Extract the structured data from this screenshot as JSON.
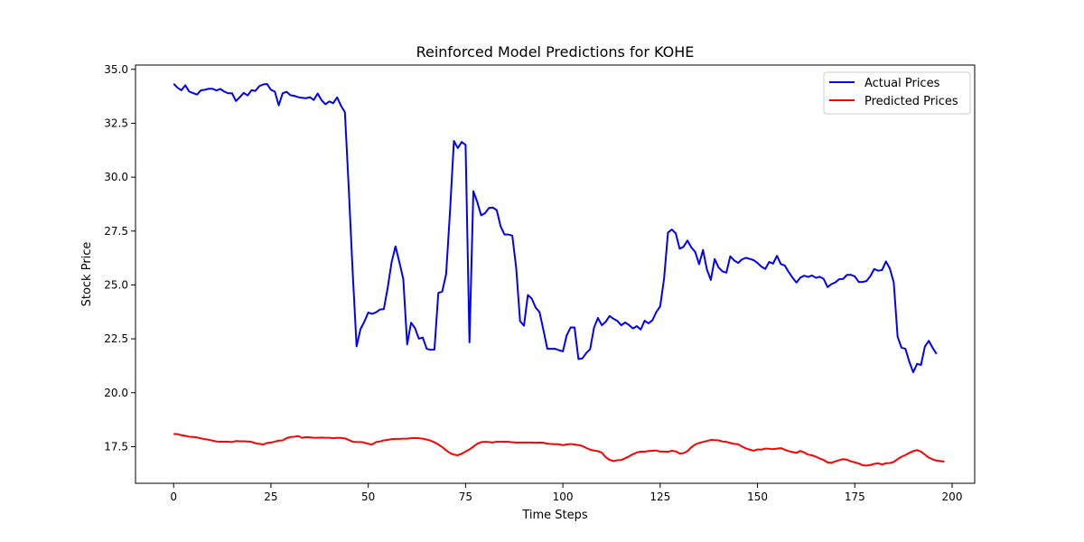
{
  "chart_data": {
    "type": "line",
    "title": "Reinforced Model Predictions for KOHE",
    "xlabel": "Time Steps",
    "ylabel": "Stock Price",
    "xlim": [
      -9.8,
      205.8
    ],
    "ylim": [
      15.8,
      35.2
    ],
    "xticks": [
      0,
      25,
      50,
      75,
      100,
      125,
      150,
      175,
      200
    ],
    "yticks": [
      17.5,
      20.0,
      22.5,
      25.0,
      27.5,
      30.0,
      32.5,
      35.0
    ],
    "ytick_labels": [
      "17.5",
      "20.0",
      "22.5",
      "25.0",
      "27.5",
      "30.0",
      "32.5",
      "35.0"
    ],
    "grid": false,
    "legend_position": "upper right",
    "series": [
      {
        "name": "Actual Prices",
        "color": "#0000ff",
        "values": [
          34.33,
          34.15,
          34.03,
          34.26,
          33.97,
          33.9,
          33.83,
          34.03,
          34.05,
          34.1,
          34.1,
          34.02,
          34.09,
          33.97,
          33.89,
          33.89,
          33.53,
          33.71,
          33.91,
          33.79,
          34.03,
          34.0,
          34.22,
          34.3,
          34.32,
          34.05,
          33.97,
          33.33,
          33.89,
          33.96,
          33.8,
          33.77,
          33.71,
          33.68,
          33.66,
          33.71,
          33.58,
          33.88,
          33.57,
          33.38,
          33.51,
          33.43,
          33.7,
          33.31,
          33.01,
          29.43,
          25.57,
          22.15,
          22.95,
          23.3,
          23.72,
          23.66,
          23.73,
          23.86,
          23.88,
          24.88,
          26.06,
          26.79,
          26.05,
          25.27,
          22.24,
          23.25,
          23.0,
          22.51,
          22.56,
          22.04,
          21.99,
          22.0,
          24.63,
          24.69,
          25.5,
          28.4,
          31.68,
          31.35,
          31.63,
          31.5,
          22.34,
          29.35,
          28.85,
          28.23,
          28.33,
          28.57,
          28.59,
          28.47,
          27.72,
          27.34,
          27.34,
          27.29,
          25.8,
          23.32,
          23.11,
          24.53,
          24.37,
          23.95,
          23.74,
          22.91,
          22.04,
          22.04,
          22.04,
          21.97,
          21.92,
          22.67,
          23.03,
          23.03,
          21.56,
          21.59,
          21.84,
          22.02,
          23.02,
          23.47,
          23.13,
          23.29,
          23.56,
          23.43,
          23.33,
          23.13,
          23.26,
          23.14,
          22.98,
          23.09,
          22.93,
          23.34,
          23.22,
          23.36,
          23.74,
          24.01,
          25.3,
          27.43,
          27.57,
          27.39,
          26.68,
          26.77,
          27.06,
          26.74,
          26.53,
          25.96,
          26.62,
          25.72,
          25.23,
          26.2,
          25.81,
          25.63,
          25.57,
          26.33,
          26.14,
          26.02,
          26.18,
          26.26,
          26.21,
          26.15,
          26.02,
          25.85,
          25.74,
          26.07,
          25.99,
          26.35,
          25.97,
          25.9,
          25.6,
          25.34,
          25.11,
          25.34,
          25.43,
          25.37,
          25.44,
          25.33,
          25.38,
          25.28,
          24.9,
          25.04,
          25.12,
          25.27,
          25.28,
          25.47,
          25.47,
          25.4,
          25.14,
          25.14,
          25.18,
          25.41,
          25.74,
          25.66,
          25.69,
          26.09,
          25.76,
          25.12,
          22.59,
          22.09,
          22.04,
          21.44,
          20.95,
          21.34,
          21.29,
          22.14,
          22.41,
          22.08,
          21.8
        ]
      },
      {
        "name": "Predicted Prices",
        "color": "#ff0000",
        "values": [
          18.09,
          18.08,
          18.03,
          18.0,
          17.96,
          17.95,
          17.93,
          17.88,
          17.85,
          17.82,
          17.78,
          17.74,
          17.73,
          17.73,
          17.73,
          17.71,
          17.76,
          17.75,
          17.75,
          17.74,
          17.72,
          17.66,
          17.63,
          17.6,
          17.67,
          17.69,
          17.73,
          17.78,
          17.79,
          17.89,
          17.95,
          17.96,
          17.99,
          17.91,
          17.94,
          17.93,
          17.91,
          17.91,
          17.92,
          17.91,
          17.91,
          17.89,
          17.91,
          17.9,
          17.88,
          17.81,
          17.73,
          17.71,
          17.71,
          17.69,
          17.63,
          17.6,
          17.71,
          17.74,
          17.79,
          17.81,
          17.85,
          17.86,
          17.86,
          17.87,
          17.87,
          17.89,
          17.9,
          17.89,
          17.87,
          17.83,
          17.78,
          17.7,
          17.6,
          17.48,
          17.33,
          17.2,
          17.13,
          17.1,
          17.17,
          17.27,
          17.37,
          17.5,
          17.63,
          17.71,
          17.72,
          17.71,
          17.69,
          17.73,
          17.72,
          17.73,
          17.72,
          17.7,
          17.69,
          17.69,
          17.69,
          17.69,
          17.69,
          17.68,
          17.69,
          17.68,
          17.64,
          17.62,
          17.61,
          17.61,
          17.57,
          17.6,
          17.62,
          17.6,
          17.57,
          17.53,
          17.44,
          17.36,
          17.32,
          17.29,
          17.22,
          17.01,
          16.89,
          16.83,
          16.87,
          16.88,
          16.96,
          17.05,
          17.15,
          17.23,
          17.27,
          17.26,
          17.3,
          17.31,
          17.32,
          17.27,
          17.27,
          17.26,
          17.31,
          17.28,
          17.18,
          17.2,
          17.29,
          17.47,
          17.6,
          17.67,
          17.72,
          17.76,
          17.81,
          17.8,
          17.79,
          17.74,
          17.72,
          17.67,
          17.63,
          17.61,
          17.51,
          17.42,
          17.36,
          17.31,
          17.37,
          17.36,
          17.41,
          17.4,
          17.38,
          17.41,
          17.43,
          17.36,
          17.29,
          17.25,
          17.21,
          17.3,
          17.23,
          17.13,
          17.1,
          17.03,
          16.95,
          16.88,
          16.77,
          16.75,
          16.82,
          16.87,
          16.92,
          16.89,
          16.82,
          16.77,
          16.72,
          16.64,
          16.62,
          16.65,
          16.7,
          16.73,
          16.67,
          16.73,
          16.74,
          16.79,
          16.92,
          17.03,
          17.11,
          17.21,
          17.29,
          17.34,
          17.27,
          17.13,
          16.99,
          16.91,
          16.85,
          16.83,
          16.8
        ]
      }
    ]
  }
}
